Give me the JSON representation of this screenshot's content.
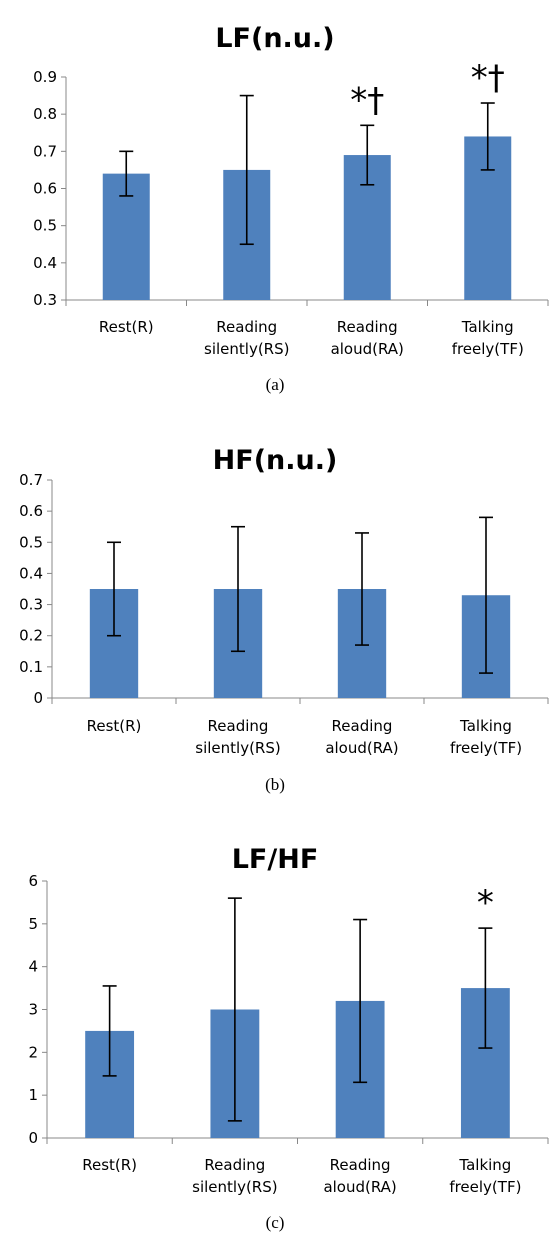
{
  "bar_color": "#4F81BD",
  "chart_data": [
    {
      "type": "bar",
      "title": "LF(n.u.)",
      "caption": "(a)",
      "categories": [
        [
          "Rest(R)"
        ],
        [
          "Reading",
          "silently(RS)"
        ],
        [
          "Reading",
          "aloud(RA)"
        ],
        [
          "Talking",
          "freely(TF)"
        ]
      ],
      "values": [
        0.64,
        0.65,
        0.69,
        0.74
      ],
      "error_low": [
        0.58,
        0.45,
        0.61,
        0.65
      ],
      "error_high": [
        0.7,
        0.85,
        0.77,
        0.83
      ],
      "annotations": [
        "",
        "",
        "*†",
        "*†"
      ],
      "ylim": [
        0.3,
        0.9
      ],
      "yticks": [
        "0.3",
        "0.4",
        "0.5",
        "0.6",
        "0.7",
        "0.8",
        "0.9"
      ],
      "grid": false,
      "legend": "none"
    },
    {
      "type": "bar",
      "title": "HF(n.u.)",
      "caption": "(b)",
      "categories": [
        [
          "Rest(R)"
        ],
        [
          "Reading",
          "silently(RS)"
        ],
        [
          "Reading",
          "aloud(RA)"
        ],
        [
          "Talking",
          "freely(TF)"
        ]
      ],
      "values": [
        0.35,
        0.35,
        0.35,
        0.33
      ],
      "error_low": [
        0.2,
        0.15,
        0.17,
        0.08
      ],
      "error_high": [
        0.5,
        0.55,
        0.53,
        0.58
      ],
      "annotations": [
        "",
        "",
        "",
        ""
      ],
      "ylim": [
        0,
        0.7
      ],
      "yticks": [
        "0",
        "0.1",
        "0.2",
        "0.3",
        "0.4",
        "0.5",
        "0.6",
        "0.7"
      ],
      "grid": false,
      "legend": "none"
    },
    {
      "type": "bar",
      "title": "LF/HF",
      "caption": "(c)",
      "categories": [
        [
          "Rest(R)"
        ],
        [
          "Reading",
          "silently(RS)"
        ],
        [
          "Reading",
          "aloud(RA)"
        ],
        [
          "Talking",
          "freely(TF)"
        ]
      ],
      "values": [
        2.5,
        3.0,
        3.2,
        3.5
      ],
      "error_low": [
        1.45,
        0.4,
        1.3,
        2.1
      ],
      "error_high": [
        3.55,
        5.6,
        5.1,
        4.9
      ],
      "annotations": [
        "",
        "",
        "",
        "*"
      ],
      "ylim": [
        0,
        6
      ],
      "yticks": [
        "0",
        "1",
        "2",
        "3",
        "4",
        "5",
        "6"
      ],
      "grid": false,
      "legend": "none"
    }
  ]
}
